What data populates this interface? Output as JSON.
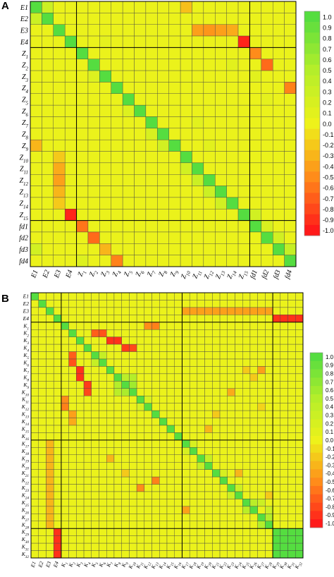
{
  "palette": {
    "low": "#ff1a1a",
    "lowmid": "#ff8c1a",
    "mid": "#eef21a",
    "highmid": "#b4ee2a",
    "high": "#55dd40"
  },
  "chart_data": [
    {
      "panel": "A",
      "type": "heatmap",
      "labels": [
        "E1",
        "E2",
        "E3",
        "E4",
        "Z1",
        "Z2",
        "Z3",
        "Z4",
        "Z5",
        "Z6",
        "Z7",
        "Z8",
        "Z9",
        "Z10",
        "Z11",
        "Z12",
        "Z13",
        "Z14",
        "Z15",
        "fd1",
        "fd2",
        "fd3",
        "fd4"
      ],
      "row_labels_display": [
        "E1",
        "E2",
        "E3",
        "E4",
        "Z1",
        "Z2",
        "Z3",
        "Z4",
        "Z5",
        "Z6",
        "Z7",
        "Z8",
        "Z9",
        "Z10",
        "Z11",
        "Z12",
        "Z13",
        "Z14",
        "Z15",
        "fd1",
        "fd2",
        "fd3",
        "fd4"
      ],
      "col_labels_display": [
        "E1",
        "E2",
        "E3",
        "E4",
        "Z1",
        "Z2",
        "Z3",
        "Z4",
        "Z5",
        "Z6",
        "Z7",
        "Z8",
        "Z9",
        "Z10",
        "Z11",
        "Z12",
        "Z13",
        "Z14",
        "Z15",
        "fd1",
        "fd2",
        "fd3",
        "fd4"
      ],
      "colorbar_ticks": [
        "1.0",
        "0.9",
        "0.8",
        "0.7",
        "0.6",
        "0.5",
        "0.4",
        "0.3",
        "0.2",
        "0.1",
        "0.0",
        "-0.1",
        "-0.2",
        "-0.3",
        "-0.4",
        "-0.5",
        "-0.6",
        "-0.7",
        "-0.8",
        "-0.9",
        "-1.0"
      ],
      "vmin": -1.0,
      "vmax": 1.0,
      "baseline": 0.03,
      "diagonal": 1.0,
      "cells": [
        [
          0,
          13,
          -0.25
        ],
        [
          2,
          14,
          -0.4
        ],
        [
          2,
          15,
          -0.45
        ],
        [
          2,
          16,
          -0.4
        ],
        [
          2,
          17,
          -0.35
        ],
        [
          3,
          18,
          -0.95
        ],
        [
          4,
          19,
          -0.5
        ],
        [
          5,
          20,
          -0.65
        ],
        [
          7,
          22,
          -0.55
        ],
        [
          12,
          0,
          -0.3
        ],
        [
          13,
          2,
          -0.2
        ],
        [
          14,
          2,
          -0.35
        ],
        [
          15,
          2,
          -0.4
        ],
        [
          16,
          2,
          -0.3
        ],
        [
          17,
          2,
          -0.2
        ],
        [
          18,
          3,
          -0.95
        ],
        [
          19,
          4,
          -0.6
        ],
        [
          20,
          5,
          -0.65
        ],
        [
          21,
          6,
          -0.3
        ],
        [
          22,
          7,
          -0.55
        ],
        [
          21,
          0,
          0.25
        ],
        [
          22,
          4,
          0.15
        ],
        [
          6,
          5,
          0.15
        ],
        [
          9,
          8,
          0.15
        ],
        [
          11,
          10,
          0.2
        ],
        [
          12,
          11,
          0.25
        ],
        [
          14,
          13,
          0.25
        ],
        [
          15,
          14,
          0.3
        ],
        [
          16,
          15,
          0.3
        ],
        [
          17,
          16,
          0.25
        ],
        [
          5,
          17,
          0.1
        ],
        [
          6,
          19,
          0.1
        ],
        [
          8,
          20,
          0.08
        ],
        [
          10,
          14,
          0.1
        ],
        [
          12,
          15,
          0.1
        ],
        [
          3,
          6,
          0.08
        ],
        [
          18,
          19,
          0.25
        ],
        [
          19,
          20,
          0.2
        ],
        [
          20,
          21,
          0.25
        ],
        [
          21,
          22,
          0.35
        ],
        [
          1,
          0,
          0.3
        ],
        [
          0,
          1,
          0.3
        ]
      ]
    },
    {
      "panel": "B",
      "type": "heatmap",
      "labels": [
        "E1",
        "E2",
        "E3",
        "E4",
        "K1",
        "K2",
        "K3",
        "K4",
        "K5",
        "K6",
        "K7",
        "K8",
        "K9",
        "K10",
        "K11",
        "K12",
        "K13",
        "K14",
        "K15",
        "K16",
        "K17",
        "K18",
        "K19",
        "K20",
        "K21",
        "K22",
        "K23",
        "K24",
        "K25",
        "K26",
        "K27",
        "K28",
        "K29",
        "K30",
        "K31",
        "K32"
      ],
      "row_labels_display": [
        "E1",
        "E2",
        "E3",
        "E4",
        "K1",
        "K2",
        "K3",
        "K4",
        "K5",
        "K6",
        "K7",
        "K8",
        "K9",
        "K10",
        "K11",
        "K12",
        "K13",
        "K14",
        "K15",
        "K16",
        "K17",
        "K18",
        "K19",
        "K20",
        "K21",
        "K22",
        "K23",
        "K24",
        "K25",
        "K26",
        "K27",
        "K28",
        "K29",
        "K30",
        "K31",
        "K32"
      ],
      "col_labels_display": [
        "E1",
        "E2",
        "E3",
        "E4",
        "K1",
        "K2",
        "K3",
        "K4",
        "K5",
        "K6",
        "K7",
        "K8",
        "K9",
        "K10",
        "K11",
        "K12",
        "K13",
        "K14",
        "K15",
        "K16",
        "K17",
        "K18",
        "K19",
        "K20",
        "K21",
        "K22",
        "K23",
        "K24",
        "K25",
        "K26",
        "K27",
        "K28",
        "K29",
        "K30",
        "K31",
        "K32"
      ],
      "colorbar_ticks": [
        "1.0",
        "0.9",
        "0.8",
        "0.7",
        "0.6",
        "0.5",
        "0.4",
        "0.3",
        "0.2",
        "0.1",
        "0.0",
        "-0.1",
        "-0.2",
        "-0.3",
        "-0.4",
        "-0.5",
        "-0.6",
        "-0.7",
        "-0.8",
        "-0.9",
        "-1.0"
      ],
      "vmin": -1.0,
      "vmax": 1.0,
      "baseline": 0.03,
      "diagonal": 1.0,
      "cells": [
        [
          2,
          20,
          -0.4
        ],
        [
          2,
          21,
          -0.4
        ],
        [
          2,
          22,
          -0.4
        ],
        [
          2,
          23,
          -0.4
        ],
        [
          2,
          24,
          -0.4
        ],
        [
          2,
          25,
          -0.4
        ],
        [
          2,
          26,
          -0.4
        ],
        [
          2,
          27,
          -0.4
        ],
        [
          2,
          28,
          -0.4
        ],
        [
          2,
          29,
          -0.4
        ],
        [
          2,
          30,
          -0.4
        ],
        [
          2,
          31,
          -0.4
        ],
        [
          3,
          32,
          -0.9
        ],
        [
          3,
          33,
          -0.9
        ],
        [
          3,
          34,
          -0.9
        ],
        [
          3,
          35,
          -0.9
        ],
        [
          4,
          15,
          -0.5
        ],
        [
          4,
          16,
          -0.55
        ],
        [
          5,
          8,
          -0.7
        ],
        [
          5,
          9,
          -0.75
        ],
        [
          6,
          10,
          -0.9
        ],
        [
          6,
          11,
          -0.9
        ],
        [
          7,
          12,
          -0.85
        ],
        [
          7,
          13,
          -0.8
        ],
        [
          8,
          5,
          -0.7
        ],
        [
          9,
          5,
          -0.75
        ],
        [
          10,
          6,
          -0.9
        ],
        [
          11,
          6,
          -0.9
        ],
        [
          12,
          7,
          -0.85
        ],
        [
          13,
          7,
          -0.8
        ],
        [
          14,
          4,
          -0.5
        ],
        [
          15,
          4,
          -0.55
        ],
        [
          16,
          5,
          -0.4
        ],
        [
          17,
          5,
          -0.35
        ],
        [
          10,
          28,
          -0.2
        ],
        [
          11,
          29,
          -0.2
        ],
        [
          15,
          30,
          -0.15
        ],
        [
          8,
          9,
          0.35
        ],
        [
          9,
          8,
          0.35
        ],
        [
          11,
          12,
          0.45
        ],
        [
          12,
          13,
          0.6
        ],
        [
          11,
          13,
          0.5
        ],
        [
          12,
          11,
          0.5
        ],
        [
          13,
          12,
          0.55
        ],
        [
          13,
          11,
          0.45
        ],
        [
          14,
          15,
          0.2
        ],
        [
          15,
          14,
          0.2
        ],
        [
          20,
          21,
          0.2
        ],
        [
          21,
          20,
          0.2
        ],
        [
          22,
          23,
          0.35
        ],
        [
          23,
          22,
          0.35
        ],
        [
          24,
          25,
          0.2
        ],
        [
          26,
          27,
          0.3
        ],
        [
          27,
          26,
          0.3
        ],
        [
          28,
          29,
          0.45
        ],
        [
          29,
          28,
          0.45
        ],
        [
          30,
          31,
          0.5
        ],
        [
          31,
          30,
          0.5
        ],
        [
          28,
          30,
          0.3
        ],
        [
          29,
          31,
          0.3
        ],
        [
          32,
          32,
          1
        ],
        [
          32,
          33,
          1
        ],
        [
          32,
          34,
          1
        ],
        [
          32,
          35,
          1
        ],
        [
          33,
          32,
          1
        ],
        [
          33,
          33,
          1
        ],
        [
          33,
          34,
          1
        ],
        [
          33,
          35,
          1
        ],
        [
          34,
          32,
          1
        ],
        [
          34,
          33,
          1
        ],
        [
          34,
          34,
          1
        ],
        [
          34,
          35,
          1
        ],
        [
          35,
          32,
          1
        ],
        [
          35,
          33,
          1
        ],
        [
          35,
          34,
          1
        ],
        [
          35,
          35,
          1
        ],
        [
          32,
          3,
          -0.9
        ],
        [
          33,
          3,
          -0.9
        ],
        [
          34,
          3,
          -0.9
        ],
        [
          35,
          3,
          -0.9
        ],
        [
          20,
          2,
          -0.3
        ],
        [
          21,
          2,
          -0.3
        ],
        [
          22,
          2,
          -0.3
        ],
        [
          23,
          2,
          -0.3
        ],
        [
          24,
          2,
          -0.3
        ],
        [
          25,
          2,
          -0.3
        ],
        [
          26,
          2,
          -0.3
        ],
        [
          27,
          2,
          -0.3
        ],
        [
          28,
          2,
          -0.3
        ],
        [
          29,
          2,
          -0.3
        ],
        [
          30,
          2,
          -0.3
        ],
        [
          31,
          2,
          -0.3
        ],
        [
          22,
          10,
          -0.3
        ],
        [
          24,
          12,
          -0.2
        ],
        [
          26,
          14,
          -0.5
        ],
        [
          25,
          16,
          -0.55
        ],
        [
          29,
          20,
          -0.4
        ],
        [
          24,
          27,
          -0.3
        ],
        [
          27,
          31,
          -0.2
        ],
        [
          18,
          23,
          -0.3
        ],
        [
          16,
          24,
          -0.2
        ],
        [
          13,
          26,
          -0.35
        ],
        [
          10,
          30,
          -0.4
        ]
      ]
    }
  ],
  "panels": {
    "a": {
      "letter": "A"
    },
    "b": {
      "letter": "B"
    }
  }
}
